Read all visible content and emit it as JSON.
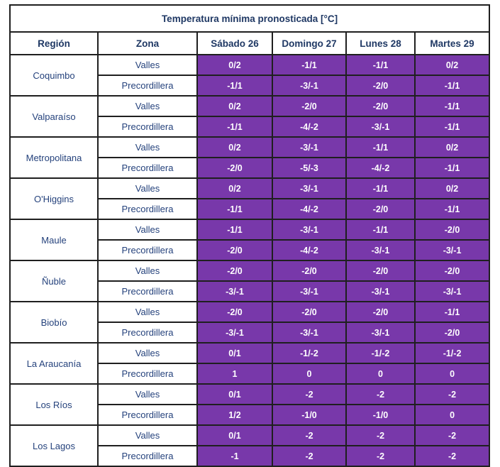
{
  "chart_data": {
    "type": "table",
    "title": "Temperatura mínima pronosticada [°C]",
    "columns": [
      "Región",
      "Zona",
      "Sábado 26",
      "Domingo 27",
      "Lunes 28",
      "Martes 29"
    ],
    "regions": [
      {
        "name": "Coquimbo",
        "zones": [
          {
            "zone": "Valles",
            "values": [
              "0/2",
              "-1/1",
              "-1/1",
              "0/2"
            ]
          },
          {
            "zone": "Precordillera",
            "values": [
              "-1/1",
              "-3/-1",
              "-2/0",
              "-1/1"
            ]
          }
        ]
      },
      {
        "name": "Valparaíso",
        "zones": [
          {
            "zone": "Valles",
            "values": [
              "0/2",
              "-2/0",
              "-2/0",
              "-1/1"
            ]
          },
          {
            "zone": "Precordillera",
            "values": [
              "-1/1",
              "-4/-2",
              "-3/-1",
              "-1/1"
            ]
          }
        ]
      },
      {
        "name": "Metropolitana",
        "zones": [
          {
            "zone": "Valles",
            "values": [
              "0/2",
              "-3/-1",
              "-1/1",
              "0/2"
            ]
          },
          {
            "zone": "Precordillera",
            "values": [
              "-2/0",
              "-5/-3",
              "-4/-2",
              "-1/1"
            ]
          }
        ]
      },
      {
        "name": "O'Higgins",
        "zones": [
          {
            "zone": "Valles",
            "values": [
              "0/2",
              "-3/-1",
              "-1/1",
              "0/2"
            ]
          },
          {
            "zone": "Precordillera",
            "values": [
              "-1/1",
              "-4/-2",
              "-2/0",
              "-1/1"
            ]
          }
        ]
      },
      {
        "name": "Maule",
        "zones": [
          {
            "zone": "Valles",
            "values": [
              "-1/1",
              "-3/-1",
              "-1/1",
              "-2/0"
            ]
          },
          {
            "zone": "Precordillera",
            "values": [
              "-2/0",
              "-4/-2",
              "-3/-1",
              "-3/-1"
            ]
          }
        ]
      },
      {
        "name": "Ñuble",
        "zones": [
          {
            "zone": "Valles",
            "values": [
              "-2/0",
              "-2/0",
              "-2/0",
              "-2/0"
            ]
          },
          {
            "zone": "Precordillera",
            "values": [
              "-3/-1",
              "-3/-1",
              "-3/-1",
              "-3/-1"
            ]
          }
        ]
      },
      {
        "name": "Biobío",
        "zones": [
          {
            "zone": "Valles",
            "values": [
              "-2/0",
              "-2/0",
              "-2/0",
              "-1/1"
            ]
          },
          {
            "zone": "Precordillera",
            "values": [
              "-3/-1",
              "-3/-1",
              "-3/-1",
              "-2/0"
            ]
          }
        ]
      },
      {
        "name": "La Araucanía",
        "zones": [
          {
            "zone": "Valles",
            "values": [
              "0/1",
              "-1/-2",
              "-1/-2",
              "-1/-2"
            ]
          },
          {
            "zone": "Precordillera",
            "values": [
              "1",
              "0",
              "0",
              "0"
            ]
          }
        ]
      },
      {
        "name": "Los Ríos",
        "zones": [
          {
            "zone": "Valles",
            "values": [
              "0/1",
              "-2",
              "-2",
              "-2"
            ]
          },
          {
            "zone": "Precordillera",
            "values": [
              "1/2",
              "-1/0",
              "-1/0",
              "0"
            ]
          }
        ]
      },
      {
        "name": "Los Lagos",
        "zones": [
          {
            "zone": "Valles",
            "values": [
              "0/1",
              "-2",
              "-2",
              "-2"
            ]
          },
          {
            "zone": "Precordillera",
            "values": [
              "-1",
              "-2",
              "-2",
              "-2"
            ]
          }
        ]
      }
    ],
    "layout": {
      "value_cell_background": "#7838AA",
      "value_text_color": "#FFFFFF",
      "label_text_color": "#25427C",
      "header_text_color": "#1F3864",
      "border_color": "#1F1F1F"
    }
  }
}
